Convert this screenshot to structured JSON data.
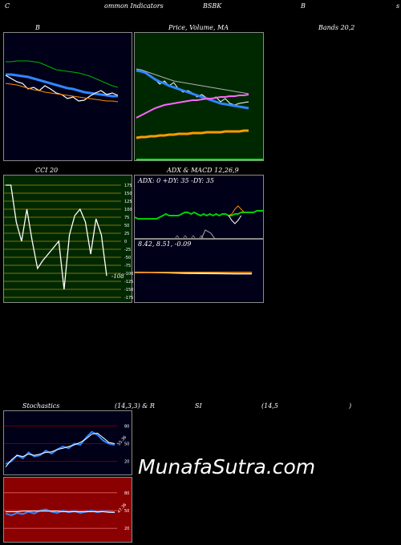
{
  "header": {
    "left": "C",
    "center": "ommon Indicators",
    "symbol": "BSBK",
    "right": "B",
    "far_right": "s"
  },
  "row1": {
    "b_label": "B",
    "price_label": "Price, Volume, MA",
    "bands_label": "Bands 20,2"
  },
  "row2": {
    "cci_label": "CCI 20",
    "adx_label": "ADX  & MACD 12,26,9"
  },
  "adx_text": "ADX: 0  +DY: 35 -DY: 35",
  "macd_text": "8.42,  8.51,  -0.09",
  "cci_value_label": "-108",
  "stoch_header": {
    "a": "Stochastics",
    "b": "(14,3,3) & R",
    "c": "SI",
    "d": "(14,5",
    "e": ")"
  },
  "stoch_value_label": "55.36",
  "rsi_value_label": "47.36",
  "watermark": "MunafaSutra.com",
  "chart_data": [
    {
      "type": "line",
      "name": "bollinger-bands",
      "series": [
        {
          "color": "#00b400",
          "values": [
            36,
            36,
            35,
            35,
            35,
            36,
            37,
            40,
            43,
            46,
            47,
            48,
            49,
            50,
            52,
            54,
            57,
            60,
            63,
            66,
            68
          ]
        },
        {
          "color": "#2f86ff",
          "values": [
            52,
            52,
            53,
            54,
            55,
            57,
            59,
            61,
            63,
            65,
            67,
            69,
            70,
            72,
            74,
            75,
            76,
            77,
            78,
            79,
            79
          ]
        },
        {
          "color": "#ffffff",
          "values": [
            53,
            57,
            61,
            63,
            70,
            68,
            72,
            66,
            70,
            75,
            77,
            82,
            80,
            85,
            84,
            79,
            75,
            72,
            77,
            75,
            78
          ]
        },
        {
          "color": "#ff8c00",
          "values": [
            63,
            64,
            65,
            67,
            69,
            71,
            72,
            74,
            75,
            76,
            77,
            78,
            79,
            80,
            81,
            82,
            83,
            84,
            85,
            85,
            86
          ]
        }
      ]
    },
    {
      "type": "line",
      "name": "price-volume-ma",
      "series": [
        {
          "color": "#ffffff",
          "values": [
            48,
            48,
            50,
            54,
            58,
            64,
            60,
            66,
            62,
            70,
            74,
            72,
            75,
            80,
            77,
            81,
            83,
            80,
            86,
            82,
            88,
            90,
            88,
            87,
            86
          ]
        },
        {
          "color": "#2f86ff",
          "values": [
            47,
            48,
            50,
            54,
            58,
            61,
            63,
            66,
            68,
            70,
            72,
            74,
            76,
            78,
            80,
            82,
            84,
            86,
            88,
            89,
            90,
            91,
            92,
            93,
            94
          ]
        },
        {
          "color": "#b0b0b0",
          "values": [
            45,
            46,
            48,
            50,
            52,
            54,
            56,
            58,
            60,
            61,
            62,
            63,
            64,
            65,
            66,
            67,
            68,
            69,
            70,
            71,
            72,
            73,
            74,
            75,
            76
          ]
        },
        {
          "color": "#ff66ff",
          "values": [
            106,
            103,
            100,
            97,
            94,
            92,
            90,
            89,
            88,
            87,
            86,
            85,
            84,
            84,
            83,
            82,
            82,
            81,
            80,
            80,
            79,
            79,
            78,
            78,
            77
          ]
        },
        {
          "color": "#ff9a00",
          "values": [
            131,
            130,
            130,
            129,
            129,
            128,
            128,
            127,
            127,
            126,
            126,
            126,
            125,
            125,
            125,
            124,
            124,
            124,
            124,
            123,
            123,
            123,
            123,
            122,
            122
          ]
        }
      ]
    },
    {
      "type": "line",
      "name": "cci",
      "ticks": [
        "175",
        "150",
        "125",
        "100",
        "75",
        "50",
        "25",
        "0",
        "-25",
        "-50",
        "-75",
        "-100",
        "-125",
        "-150",
        "-175"
      ],
      "values": [
        175,
        175,
        60,
        0,
        100,
        0,
        -85,
        -60,
        -40,
        -20,
        0,
        -150,
        20,
        80,
        100,
        60,
        -40,
        70,
        20,
        -108
      ]
    },
    {
      "type": "line",
      "name": "adx",
      "series": [
        {
          "color": "#00d000",
          "values": [
            35,
            34,
            34,
            34,
            34,
            34,
            34,
            34,
            35,
            36,
            37,
            36,
            36,
            36,
            36,
            37,
            38,
            38,
            37,
            38,
            37,
            36,
            37,
            36,
            37,
            36,
            37,
            36,
            37,
            37,
            36,
            36,
            37,
            37,
            38,
            38,
            38,
            38,
            38,
            39,
            39,
            39
          ]
        },
        {
          "color": "#ff8800",
          "values": [
            null,
            null,
            null,
            null,
            null,
            null,
            null,
            null,
            null,
            null,
            null,
            null,
            null,
            null,
            null,
            null,
            null,
            null,
            null,
            null,
            null,
            null,
            null,
            null,
            null,
            null,
            null,
            null,
            null,
            null,
            36,
            37,
            40,
            42,
            40,
            38,
            null,
            null,
            null,
            null,
            null,
            null
          ]
        },
        {
          "color": "#ffffff",
          "values": [
            null,
            null,
            null,
            null,
            null,
            null,
            null,
            null,
            null,
            null,
            null,
            null,
            null,
            null,
            null,
            null,
            null,
            null,
            null,
            null,
            null,
            null,
            null,
            null,
            null,
            null,
            null,
            null,
            null,
            null,
            36,
            33,
            31,
            33,
            36,
            null,
            null,
            null,
            null,
            null,
            null,
            null
          ]
        }
      ]
    },
    {
      "type": "line",
      "name": "macd",
      "series": [
        {
          "color": "#ffffff",
          "values": [
            8.5,
            8.5,
            8.48,
            8.45,
            8.44,
            8.43,
            8.42,
            8.42
          ]
        },
        {
          "color": "#ff8800",
          "values": [
            8.52,
            8.51,
            8.51,
            8.51,
            8.51,
            8.51,
            8.51,
            8.51
          ]
        }
      ]
    },
    {
      "type": "line",
      "name": "stochastics",
      "ticks": [
        "80",
        "50",
        "20"
      ],
      "series": [
        {
          "color": "#2f86ff",
          "values": [
            15,
            20,
            30,
            25,
            35,
            28,
            30,
            38,
            33,
            40,
            45,
            42,
            50,
            48,
            60,
            70,
            65,
            55,
            50,
            48
          ]
        },
        {
          "color": "#ffffff",
          "values": [
            10,
            22,
            30,
            28,
            32,
            30,
            32,
            35,
            36,
            40,
            42,
            45,
            48,
            52,
            58,
            66,
            68,
            60,
            52,
            50
          ]
        }
      ]
    },
    {
      "type": "line",
      "name": "rsi",
      "ticks": [
        "80",
        "50",
        "20"
      ],
      "series": [
        {
          "color": "#2f86ff",
          "values": [
            45,
            42,
            46,
            44,
            48,
            45,
            50,
            52,
            48,
            46,
            50,
            47,
            49,
            46,
            48,
            50,
            47,
            49,
            48,
            47
          ]
        },
        {
          "color": "#ffffff",
          "values": [
            48,
            48,
            48,
            49,
            49,
            49,
            49,
            49,
            49,
            49,
            48,
            48,
            48,
            48,
            48,
            48,
            48,
            48,
            47,
            47
          ]
        }
      ]
    }
  ]
}
